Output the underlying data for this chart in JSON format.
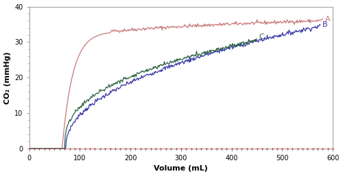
{
  "title": "",
  "xlabel": "Volume (mL)",
  "ylabel": "CO₂ (mmHg)",
  "xlim": [
    0,
    600
  ],
  "ylim": [
    0,
    40
  ],
  "xticks": [
    0,
    100,
    200,
    300,
    400,
    500,
    600
  ],
  "yticks": [
    0,
    10,
    20,
    30,
    40
  ],
  "curve_A": {
    "color": "#c87878",
    "label": "A",
    "dead_x": 65,
    "end_x": 575,
    "end_val": 36.0
  },
  "curve_B": {
    "color": "#3535aa",
    "label": "B",
    "dead_x": 72,
    "end_x": 575,
    "end_val": 34.5
  },
  "curve_C": {
    "color": "#2a6040",
    "label": "C",
    "dead_x": 70,
    "end_x": 450,
    "end_val": 30.5
  },
  "label_fontsize": 8,
  "tick_fontsize": 7,
  "axis_label_fontsize": 8,
  "line_width": 0.9,
  "dot_color": "#cc3333",
  "dot_size": 1.5,
  "spine_color": "#999999"
}
